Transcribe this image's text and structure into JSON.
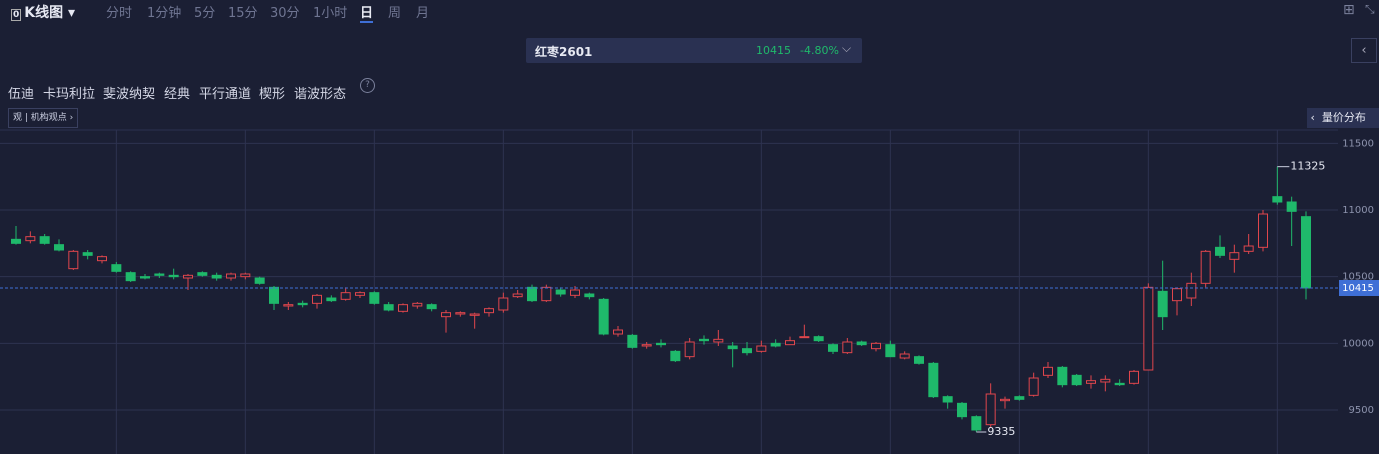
{
  "ui": {
    "header": {
      "title": "K线图",
      "periods": [
        "分时",
        "1分钟",
        "5分",
        "15分",
        "30分",
        "1小时",
        "日",
        "周",
        "月"
      ],
      "active_period": "日"
    },
    "instrument": {
      "name": "红枣2601",
      "price": 10415,
      "change": "-4.80%"
    },
    "tools": [
      "伍迪",
      "卡玛利拉",
      "斐波纳契",
      "经典",
      "平行通道",
      "楔形",
      "谐波形态"
    ],
    "help": "?",
    "views_button": "机构观点",
    "views_icon": "观",
    "volume_profile": "量价分布"
  },
  "chart_data": {
    "type": "candlestick",
    "up_color": "#e0464c",
    "down_color": "#1fb96b",
    "open": [
      10780,
      10770,
      10800,
      10740,
      10560,
      10680,
      10620,
      10590,
      10530,
      10500,
      10520,
      10510,
      10490,
      10530,
      10510,
      10490,
      10500,
      10490,
      10420,
      10280,
      10300,
      10300,
      10340,
      10330,
      10360,
      10380,
      10290,
      10240,
      10280,
      10290,
      10200,
      10220,
      10210,
      10230,
      10250,
      10350,
      10420,
      10320,
      10400,
      10360,
      10370,
      10330,
      10070,
      10060,
      9980,
      10000,
      9940,
      9900,
      10030,
      10010,
      9980,
      9960,
      9940,
      10000,
      9990,
      10050,
      10050,
      9990,
      9930,
      10010,
      9960,
      9990,
      9890,
      9900,
      9850,
      9600,
      9550,
      9450,
      9390,
      9570,
      9600,
      9610,
      9760,
      9820,
      9760,
      9700,
      9710,
      9700,
      9700,
      9800,
      10390,
      10320,
      10340,
      10450,
      10720,
      10630,
      10690,
      10720,
      11100,
      11060,
      10950
    ],
    "high": [
      10880,
      10840,
      10820,
      10780,
      10700,
      10700,
      10660,
      10610,
      10540,
      10520,
      10530,
      10560,
      10520,
      10540,
      10530,
      10530,
      10530,
      10500,
      10430,
      10310,
      10320,
      10370,
      10360,
      10420,
      10390,
      10390,
      10310,
      10300,
      10310,
      10300,
      10250,
      10240,
      10230,
      10270,
      10380,
      10400,
      10440,
      10440,
      10420,
      10430,
      10380,
      10340,
      10130,
      10070,
      10010,
      10030,
      9950,
      10040,
      10060,
      10100,
      10010,
      10010,
      10020,
      10030,
      10050,
      10140,
      10060,
      10000,
      10040,
      10020,
      10010,
      10020,
      9940,
      9910,
      9860,
      9610,
      9560,
      9460,
      9700,
      9600,
      9610,
      9780,
      9860,
      9830,
      9770,
      9760,
      9760,
      9730,
      9800,
      10450,
      10620,
      10420,
      10530,
      10700,
      10810,
      10740,
      10820,
      11000,
      11325,
      11100,
      10990
    ],
    "low": [
      10740,
      10750,
      10740,
      10690,
      10550,
      10630,
      10600,
      10530,
      10460,
      10480,
      10490,
      10480,
      10400,
      10500,
      10470,
      10470,
      10480,
      10440,
      10250,
      10250,
      10270,
      10260,
      10310,
      10320,
      10340,
      10290,
      10240,
      10230,
      10260,
      10240,
      10080,
      10200,
      10110,
      10200,
      10230,
      10340,
      10310,
      10310,
      10350,
      10340,
      10330,
      10060,
      10050,
      9960,
      9960,
      9970,
      9860,
      9880,
      9990,
      9980,
      9820,
      9910,
      9930,
      9970,
      9990,
      10040,
      10010,
      9920,
      9920,
      9980,
      9940,
      9900,
      9880,
      9840,
      9590,
      9510,
      9430,
      9335,
      9370,
      9510,
      9570,
      9600,
      9740,
      9670,
      9680,
      9660,
      9640,
      9680,
      9690,
      9800,
      10100,
      10210,
      10280,
      10420,
      10640,
      10530,
      10670,
      10690,
      11040,
      10730,
      10330
    ],
    "close": [
      10750,
      10800,
      10750,
      10700,
      10690,
      10660,
      10650,
      10540,
      10470,
      10490,
      10510,
      10500,
      10510,
      10510,
      10490,
      10520,
      10520,
      10450,
      10300,
      10290,
      10290,
      10360,
      10320,
      10380,
      10380,
      10300,
      10250,
      10290,
      10300,
      10260,
      10230,
      10230,
      10220,
      10260,
      10340,
      10370,
      10320,
      10420,
      10370,
      10400,
      10350,
      10070,
      10100,
      9970,
      9990,
      9990,
      9870,
      10010,
      10020,
      10030,
      9960,
      9930,
      9980,
      9980,
      10020,
      10050,
      10020,
      9940,
      10010,
      9990,
      10000,
      9900,
      9920,
      9850,
      9600,
      9560,
      9450,
      9350,
      9620,
      9580,
      9580,
      9740,
      9820,
      9690,
      9690,
      9720,
      9730,
      9690,
      9790,
      10420,
      10200,
      10410,
      10450,
      10690,
      10660,
      10680,
      10730,
      10970,
      11060,
      10990,
      10415
    ],
    "ylim": [
      9170,
      11600
    ],
    "yticks": [
      9500,
      10000,
      10500,
      11000,
      11500
    ],
    "grid": true,
    "max_label": 11325,
    "min_label": 9335,
    "last_price": 10415,
    "last_price_color": "#3f6fd6"
  }
}
